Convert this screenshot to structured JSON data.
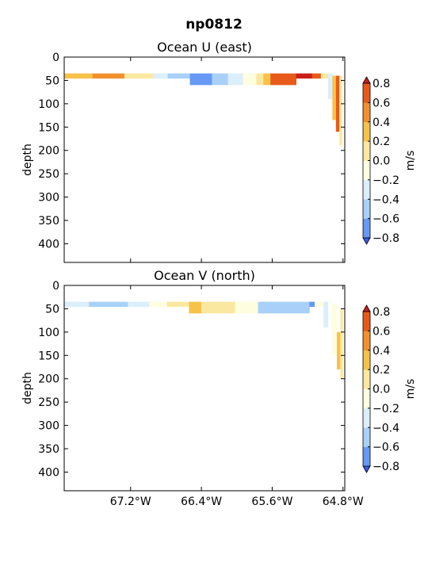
{
  "chart_data": {
    "suptitle": "np0812",
    "type": "contourf",
    "depth_ticks": [
      "0",
      "50",
      "100",
      "150",
      "200",
      "250",
      "300",
      "350",
      "400"
    ],
    "depth_tick_values": [
      0,
      50,
      100,
      150,
      200,
      250,
      300,
      350,
      400
    ],
    "ylim": [
      440,
      0
    ],
    "xlim": [
      -67.95,
      -64.78
    ],
    "x_ticks": [
      {
        "value": -67.2,
        "label": "67.2°W"
      },
      {
        "value": -66.4,
        "label": "66.4°W"
      },
      {
        "value": -65.6,
        "label": "65.6°W"
      },
      {
        "value": -64.8,
        "label": "64.8°W"
      }
    ],
    "levels": [
      -0.8,
      -0.6,
      -0.4,
      -0.2,
      0.0,
      0.2,
      0.4,
      0.6,
      0.8
    ],
    "level_labels": [
      "−0.8",
      "−0.6",
      "−0.4",
      "−0.2",
      "0.0",
      "0.2",
      "0.4",
      "0.6",
      "0.8"
    ],
    "band_colors": [
      "#3a5bf5",
      "#6699f5",
      "#a8d0f8",
      "#dbeefc",
      "#fefde0",
      "#fbe8a0",
      "#f7c24a",
      "#f3902e",
      "#e85a1a",
      "#c91f1a"
    ],
    "panels": [
      {
        "title": "Ocean U (east)",
        "ylabel": "depth",
        "colorbar_label": "m/s",
        "segments": [
          {
            "lon0": -67.95,
            "lon1": -67.63,
            "band": 6
          },
          {
            "lon0": -67.63,
            "lon1": -67.27,
            "band": 7
          },
          {
            "lon0": -67.27,
            "lon1": -66.95,
            "band": 5
          },
          {
            "lon0": -66.95,
            "lon1": -66.78,
            "band": 3
          },
          {
            "lon0": -66.78,
            "lon1": -66.53,
            "band": 2
          },
          {
            "lon0": -66.53,
            "lon1": -66.28,
            "band": 1,
            "bottom": 60
          },
          {
            "lon0": -66.28,
            "lon1": -66.1,
            "band": 2,
            "bottom": 60
          },
          {
            "lon0": -66.1,
            "lon1": -65.93,
            "band": 3,
            "bottom": 60
          },
          {
            "lon0": -65.93,
            "lon1": -65.78,
            "band": 4,
            "bottom": 60
          },
          {
            "lon0": -65.78,
            "lon1": -65.7,
            "band": 5,
            "bottom": 60
          },
          {
            "lon0": -65.7,
            "lon1": -65.62,
            "band": 6,
            "bottom": 60
          },
          {
            "lon0": -65.62,
            "lon1": -65.33,
            "band": 8,
            "bottom": 60
          },
          {
            "lon0": -65.33,
            "lon1": -65.15,
            "band": 9
          },
          {
            "lon0": -65.15,
            "lon1": -65.05,
            "band": 8
          },
          {
            "lon0": -65.05,
            "lon1": -64.97,
            "band": 5
          },
          {
            "lon0": -64.97,
            "lon1": -64.92,
            "band": 3,
            "bottom": 90
          }
        ],
        "columns": [
          {
            "lon0": -64.92,
            "lon1": -64.88,
            "top": 40,
            "bottom": 135,
            "band": 6
          },
          {
            "lon0": -64.88,
            "lon1": -64.84,
            "top": 40,
            "bottom": 160,
            "band": 8
          },
          {
            "lon0": -64.84,
            "lon1": -64.81,
            "top": 40,
            "bottom": 190,
            "band": 5
          }
        ]
      },
      {
        "title": "Ocean V (north)",
        "ylabel": "depth",
        "colorbar_label": "m/s",
        "segments": [
          {
            "lon0": -67.95,
            "lon1": -67.67,
            "band": 3
          },
          {
            "lon0": -67.67,
            "lon1": -67.23,
            "band": 2
          },
          {
            "lon0": -67.23,
            "lon1": -66.99,
            "band": 3
          },
          {
            "lon0": -66.99,
            "lon1": -66.79,
            "band": 4
          },
          {
            "lon0": -66.79,
            "lon1": -66.54,
            "band": 5
          },
          {
            "lon0": -66.54,
            "lon1": -66.4,
            "band": 6,
            "bottom": 60
          },
          {
            "lon0": -66.4,
            "lon1": -66.02,
            "band": 5,
            "bottom": 60
          },
          {
            "lon0": -66.02,
            "lon1": -65.76,
            "band": 4,
            "bottom": 60
          },
          {
            "lon0": -65.76,
            "lon1": -65.18,
            "band": 2,
            "bottom": 60
          },
          {
            "lon0": -65.18,
            "lon1": -65.12,
            "band": 1
          },
          {
            "lon0": -65.12,
            "lon1": -65.02,
            "band": 4
          },
          {
            "lon0": -65.02,
            "lon1": -64.97,
            "band": 3,
            "bottom": 90
          }
        ],
        "columns": [
          {
            "lon0": -64.93,
            "lon1": -64.87,
            "top": 40,
            "bottom": 150,
            "band": 4
          },
          {
            "lon0": -64.87,
            "lon1": -64.83,
            "top": 100,
            "bottom": 180,
            "band": 6
          },
          {
            "lon0": -64.83,
            "lon1": -64.8,
            "top": 50,
            "bottom": 200,
            "band": 5
          }
        ]
      }
    ]
  }
}
